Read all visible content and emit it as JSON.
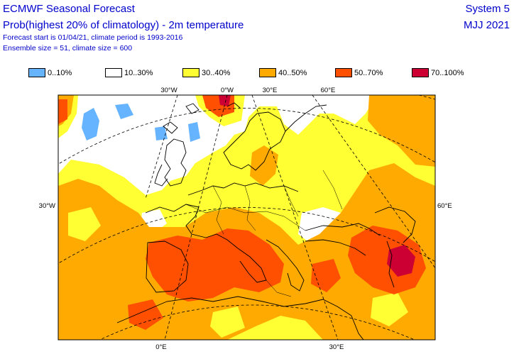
{
  "header": {
    "title": "ECMWF Seasonal Forecast",
    "subtitle": "Prob(highest 20% of climatology) - 2m temperature",
    "forecast_info": "Forecast start is 01/04/21, climate period is 1993-2016",
    "ensemble_info": "Ensemble size = 51, climate size = 600",
    "system": "System 5",
    "period": "MJJ 2021"
  },
  "legend": [
    {
      "label": "0..10%",
      "color": "#66b3ff"
    },
    {
      "label": "10..30%",
      "color": "#ffffff"
    },
    {
      "label": "30..40%",
      "color": "#ffff33"
    },
    {
      "label": "40..50%",
      "color": "#ffaa00"
    },
    {
      "label": "50..70%",
      "color": "#ff4f00"
    },
    {
      "label": "70..100%",
      "color": "#cc0033"
    }
  ],
  "map": {
    "top_labels": [
      "30°W",
      "0°W",
      "30°E",
      "60°E"
    ],
    "bottom_labels": [
      "0°E",
      "30°E"
    ],
    "left_label": "30°W",
    "right_label": "60°E"
  }
}
